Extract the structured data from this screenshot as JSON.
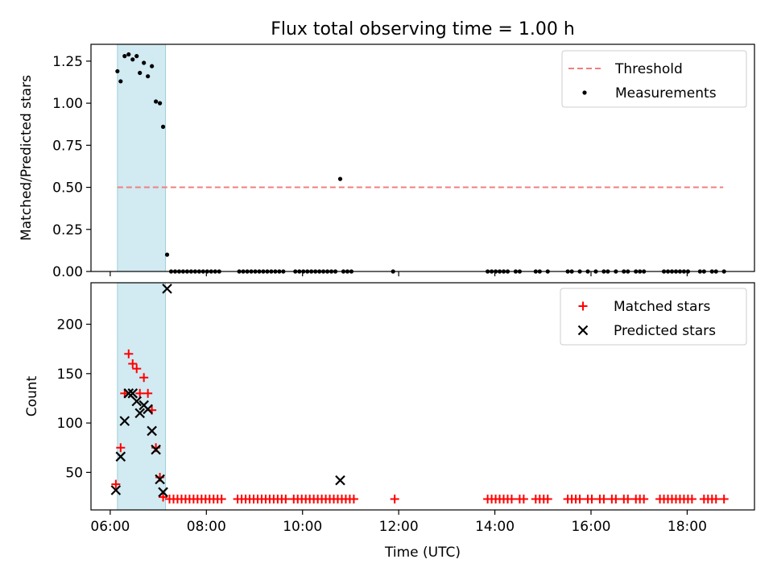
{
  "title": "Flux total observing time = 1.00 h",
  "colors": {
    "threshold": "#f07f7f",
    "measurement": "#000000",
    "matched": "#ff0000",
    "predicted": "#000000",
    "shade": "#add8e6"
  },
  "chart_data": [
    {
      "type": "scatter",
      "title": "Flux total observing time = 1.00 h",
      "xlabel": "",
      "ylabel": "Matched/Predicted stars",
      "xlim": [
        "05:36",
        "19:24"
      ],
      "ylim": [
        0,
        1.35
      ],
      "yticks": [
        "0.00",
        "0.25",
        "0.50",
        "0.75",
        "1.00",
        "1.25"
      ],
      "shaded_interval": [
        "06:09",
        "07:09"
      ],
      "legend": {
        "position": "top-right",
        "entries": [
          "Threshold",
          "Measurements"
        ]
      },
      "series": [
        {
          "name": "Threshold",
          "style": "dashed-line",
          "x": [
            "06:09",
            "18:45"
          ],
          "y": [
            0.5,
            0.5
          ]
        },
        {
          "name": "Measurements",
          "style": "dots",
          "x": [
            "06:09",
            "06:13",
            "06:18",
            "06:23",
            "06:28",
            "06:33",
            "06:37",
            "06:42",
            "06:47",
            "06:52",
            "06:57",
            "07:02",
            "07:06",
            "07:11",
            "07:16",
            "07:21",
            "07:26",
            "07:31",
            "07:36",
            "07:41",
            "07:46",
            "07:51",
            "07:56",
            "08:01",
            "08:06",
            "08:11",
            "08:16",
            "08:41",
            "08:46",
            "08:51",
            "08:56",
            "09:01",
            "09:06",
            "09:11",
            "09:16",
            "09:21",
            "09:26",
            "09:31",
            "09:36",
            "09:51",
            "09:56",
            "10:01",
            "10:06",
            "10:11",
            "10:16",
            "10:21",
            "10:26",
            "10:31",
            "10:36",
            "10:41",
            "10:47",
            "10:51",
            "10:56",
            "11:01",
            "11:53",
            "13:51",
            "13:56",
            "14:01",
            "14:06",
            "14:11",
            "14:16",
            "14:26",
            "14:31",
            "14:51",
            "14:56",
            "15:06",
            "15:31",
            "15:36",
            "15:46",
            "15:56",
            "16:06",
            "16:16",
            "16:21",
            "16:31",
            "16:41",
            "16:46",
            "16:56",
            "17:01",
            "17:06",
            "17:31",
            "17:36",
            "17:41",
            "17:46",
            "17:51",
            "17:56",
            "18:01",
            "18:16",
            "18:21",
            "18:31",
            "18:36",
            "18:46"
          ],
          "y": [
            1.19,
            1.13,
            1.28,
            1.29,
            1.26,
            1.28,
            1.18,
            1.24,
            1.16,
            1.22,
            1.01,
            1.0,
            0.86,
            0.1,
            0,
            0,
            0,
            0,
            0,
            0,
            0,
            0,
            0,
            0,
            0,
            0,
            0,
            0,
            0,
            0,
            0,
            0,
            0,
            0,
            0,
            0,
            0,
            0,
            0,
            0,
            0,
            0,
            0,
            0,
            0,
            0,
            0,
            0,
            0,
            0,
            0.55,
            0,
            0,
            0,
            0,
            0,
            0,
            0,
            0,
            0,
            0,
            0,
            0,
            0,
            0,
            0,
            0,
            0,
            0,
            0,
            0,
            0,
            0,
            0,
            0,
            0,
            0,
            0,
            0,
            0,
            0,
            0,
            0,
            0,
            0,
            0,
            0,
            0,
            0,
            0,
            0
          ]
        }
      ]
    },
    {
      "type": "scatter",
      "title": "",
      "xlabel": "Time (UTC)",
      "ylabel": "Count",
      "xlim": [
        "05:36",
        "19:24"
      ],
      "ylim": [
        12,
        242
      ],
      "xticks": [
        "06:00",
        "08:00",
        "10:00",
        "12:00",
        "14:00",
        "16:00",
        "18:00"
      ],
      "yticks": [
        "50",
        "100",
        "150",
        "200"
      ],
      "shaded_interval": [
        "06:09",
        "07:09"
      ],
      "legend": {
        "position": "top-right",
        "entries": [
          "Matched stars",
          "Predicted stars"
        ]
      },
      "series": [
        {
          "name": "Matched stars",
          "marker": "plus",
          "x": [
            "06:07",
            "06:13",
            "06:18",
            "06:23",
            "06:28",
            "06:33",
            "06:37",
            "06:42",
            "06:47",
            "06:52",
            "06:57",
            "07:02",
            "07:06",
            "07:14",
            "07:19",
            "07:24",
            "07:29",
            "07:34",
            "07:39",
            "07:44",
            "07:49",
            "07:54",
            "07:59",
            "08:04",
            "08:09",
            "08:14",
            "08:19",
            "08:39",
            "08:44",
            "08:49",
            "08:54",
            "08:59",
            "09:04",
            "09:09",
            "09:14",
            "09:19",
            "09:24",
            "09:29",
            "09:34",
            "09:39",
            "09:49",
            "09:54",
            "09:59",
            "10:04",
            "10:09",
            "10:14",
            "10:19",
            "10:24",
            "10:29",
            "10:34",
            "10:39",
            "10:44",
            "10:49",
            "10:54",
            "10:59",
            "11:04",
            "11:55",
            "13:51",
            "13:56",
            "14:01",
            "14:06",
            "14:11",
            "14:16",
            "14:21",
            "14:31",
            "14:36",
            "14:51",
            "14:56",
            "15:01",
            "15:06",
            "15:31",
            "15:36",
            "15:41",
            "15:46",
            "15:56",
            "16:01",
            "16:11",
            "16:16",
            "16:26",
            "16:31",
            "16:41",
            "16:46",
            "16:56",
            "17:01",
            "17:06",
            "17:26",
            "17:31",
            "17:36",
            "17:41",
            "17:46",
            "17:51",
            "17:56",
            "18:01",
            "18:06",
            "18:21",
            "18:26",
            "18:31",
            "18:36",
            "18:46"
          ],
          "y": [
            38,
            75,
            130,
            170,
            160,
            155,
            130,
            146,
            130,
            113,
            75,
            45,
            25,
            23,
            23,
            23,
            23,
            23,
            23,
            23,
            23,
            23,
            23,
            23,
            23,
            23,
            23,
            23,
            23,
            23,
            23,
            23,
            23,
            23,
            23,
            23,
            23,
            23,
            23,
            23,
            23,
            23,
            23,
            23,
            23,
            23,
            23,
            23,
            23,
            23,
            23,
            23,
            23,
            23,
            23,
            23,
            23,
            23,
            23,
            23,
            23,
            23,
            23,
            23,
            23,
            23,
            23,
            23,
            23,
            23,
            23,
            23,
            23,
            23,
            23,
            23,
            23,
            23,
            23,
            23,
            23,
            23,
            23,
            23,
            23,
            23,
            23,
            23,
            23,
            23,
            23,
            23,
            23,
            23,
            23,
            23,
            23,
            23,
            23
          ]
        },
        {
          "name": "Predicted stars",
          "marker": "x",
          "x": [
            "06:07",
            "06:13",
            "06:18",
            "06:23",
            "06:28",
            "06:33",
            "06:37",
            "06:42",
            "06:47",
            "06:52",
            "06:57",
            "07:02",
            "07:06",
            "07:11",
            "10:47"
          ],
          "y": [
            32,
            66,
            102,
            130,
            130,
            122,
            110,
            118,
            114,
            92,
            73,
            43,
            30,
            236,
            42
          ]
        }
      ]
    }
  ]
}
